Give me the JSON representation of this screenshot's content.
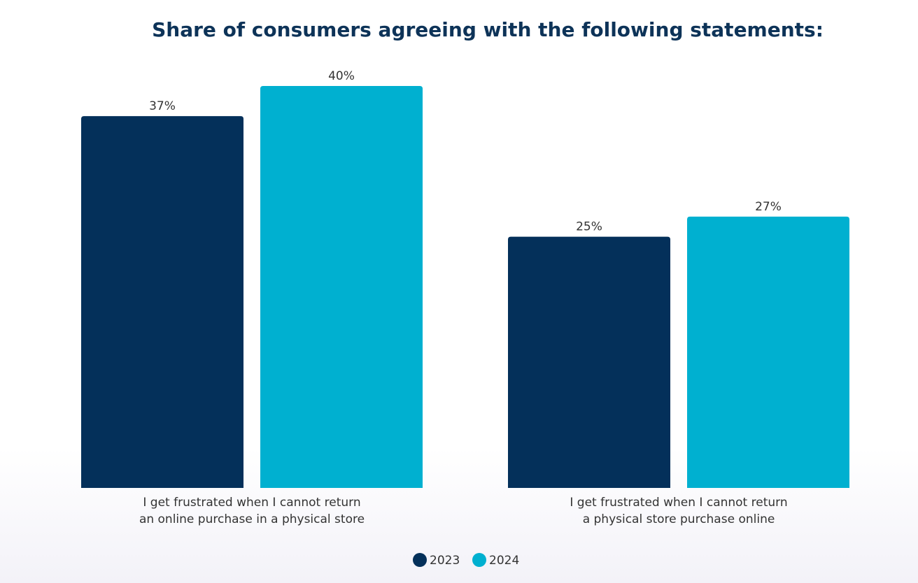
{
  "colors": {
    "series_2023": "#04305a",
    "series_2024": "#00b0d0",
    "title": "#0d3358",
    "text": "#333333"
  },
  "chart_data": {
    "type": "bar",
    "title": "Share of consumers agreeing with the following statements:",
    "xlabel": "",
    "ylabel": "",
    "ylim": [
      0,
      40
    ],
    "grid": false,
    "legend_position": "bottom",
    "categories": [
      [
        "I get frustrated when I cannot return",
        "an online purchase in a physical store"
      ],
      [
        "I get frustrated when I cannot return",
        "a physical store purchase online"
      ]
    ],
    "series": [
      {
        "name": "2023",
        "values": [
          37,
          25
        ],
        "labels": [
          "37%",
          "25%"
        ],
        "color": "#04305a"
      },
      {
        "name": "2024",
        "values": [
          40,
          27
        ],
        "labels": [
          "40%",
          "27%"
        ],
        "color": "#00b0d0"
      }
    ]
  }
}
